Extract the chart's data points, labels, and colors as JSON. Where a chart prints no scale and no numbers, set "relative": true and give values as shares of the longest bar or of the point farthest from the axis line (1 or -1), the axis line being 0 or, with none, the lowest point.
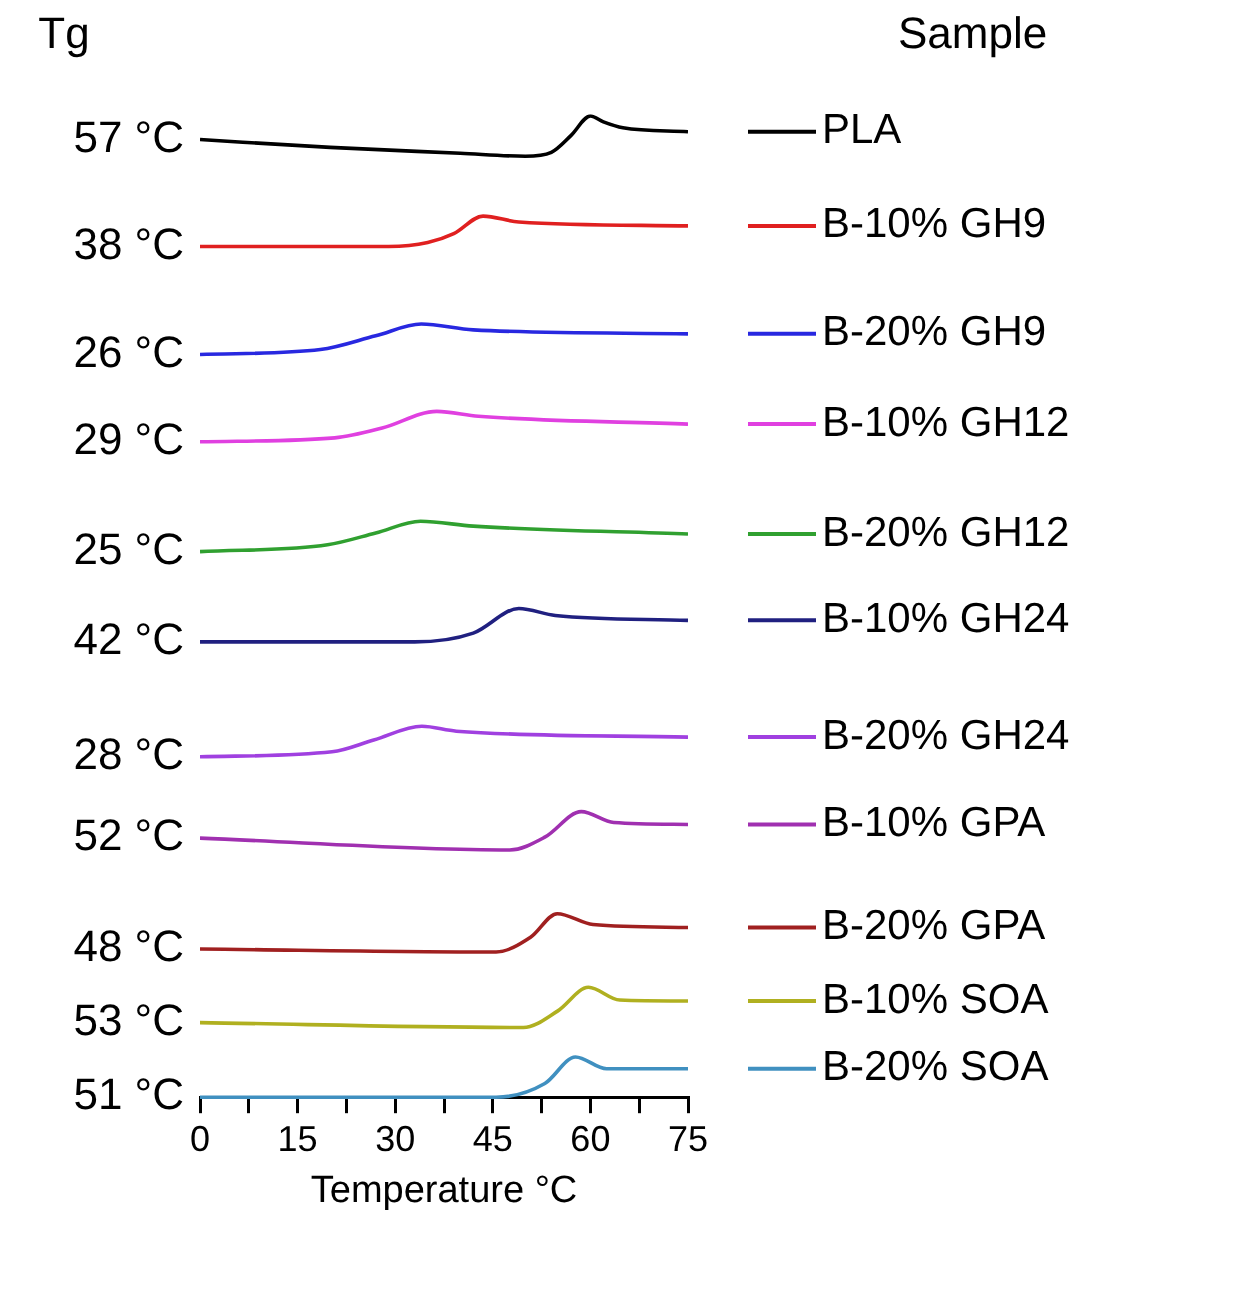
{
  "chart_data": {
    "type": "line",
    "relative": true,
    "xlabel": "Temperature °C",
    "legend": "right",
    "legend_title": "Sample",
    "xlim": [
      0,
      75
    ],
    "xticks": [
      0,
      {
        "value": 7.5,
        "label": null
      },
      15,
      {
        "value": 22.5,
        "label": null
      },
      30,
      {
        "value": 37.5,
        "label": null
      },
      45,
      {
        "value": 52.5,
        "label": null
      },
      60,
      {
        "value": 67.5,
        "label": null
      },
      75
    ],
    "annotations": [
      "Tg",
      "57 °C",
      "38 °C",
      "26 °C",
      "29 °C",
      "25 °C",
      "42 °C",
      "28 °C",
      "52 °C",
      "48 °C",
      "53 °C",
      "51 °C"
    ],
    "series": [
      {
        "name": "PLA",
        "color": "#000000",
        "x": [
          0,
          20,
          40,
          50,
          54,
          57,
          60,
          62,
          65,
          75
        ],
        "values": [
          0.976,
          0.968,
          0.962,
          0.959,
          0.963,
          0.98,
          1,
          0.994,
          0.988,
          0.984
        ]
      },
      {
        "name": "B-10% GH9",
        "color": "#e02020",
        "x": [
          0,
          29,
          35,
          39,
          43.5,
          49,
          75
        ],
        "values": [
          0.867,
          0.867,
          0.871,
          0.88,
          0.898,
          0.892,
          0.888
        ]
      },
      {
        "name": "B-20% GH9",
        "color": "#2828e0",
        "x": [
          0,
          18.5,
          27,
          34,
          42,
          75
        ],
        "values": [
          0.757,
          0.762,
          0.776,
          0.788,
          0.782,
          0.778
        ]
      },
      {
        "name": "B-10% GH12",
        "color": "#e040e0",
        "x": [
          0,
          20.7,
          28,
          36.4,
          42.8,
          75
        ],
        "values": [
          0.668,
          0.672,
          0.682,
          0.699,
          0.694,
          0.686
        ]
      },
      {
        "name": "B-20% GH12",
        "color": "#30a030",
        "x": [
          0,
          19.6,
          27,
          33.9,
          42,
          75
        ],
        "values": [
          0.556,
          0.563,
          0.575,
          0.587,
          0.582,
          0.574
        ]
      },
      {
        "name": "B-10% GH24",
        "color": "#202080",
        "x": [
          0,
          33,
          42,
          49,
          54.6,
          75
        ],
        "values": [
          0.464,
          0.464,
          0.473,
          0.498,
          0.491,
          0.486
        ]
      },
      {
        "name": "B-20% GH24",
        "color": "#a040e0",
        "x": [
          0,
          20.3,
          26.7,
          34.1,
          39.4,
          75
        ],
        "values": [
          0.347,
          0.352,
          0.364,
          0.378,
          0.373,
          0.367
        ]
      },
      {
        "name": "B-10% GPA",
        "color": "#a030b0",
        "x": [
          0,
          47.6,
          53,
          58.6,
          63.6,
          75
        ],
        "values": [
          0.264,
          0.252,
          0.265,
          0.291,
          0.28,
          0.278
        ]
      },
      {
        "name": "B-20% GPA",
        "color": "#a02020",
        "x": [
          0,
          45.5,
          50.8,
          54.9,
          60.4,
          75
        ],
        "values": [
          0.151,
          0.148,
          0.163,
          0.187,
          0.176,
          0.173
        ]
      },
      {
        "name": "B-10% SOA",
        "color": "#b0b020",
        "x": [
          0,
          49.7,
          55,
          59.7,
          64.5,
          75
        ],
        "values": [
          0.076,
          0.071,
          0.088,
          0.112,
          0.099,
          0.098
        ]
      },
      {
        "name": "B-20% SOA",
        "color": "#4090c0",
        "x": [
          0,
          45.5,
          53,
          57.7,
          62.5,
          75
        ],
        "values": [
          0,
          0,
          0.014,
          0.041,
          0.029,
          0.029
        ]
      }
    ]
  }
}
